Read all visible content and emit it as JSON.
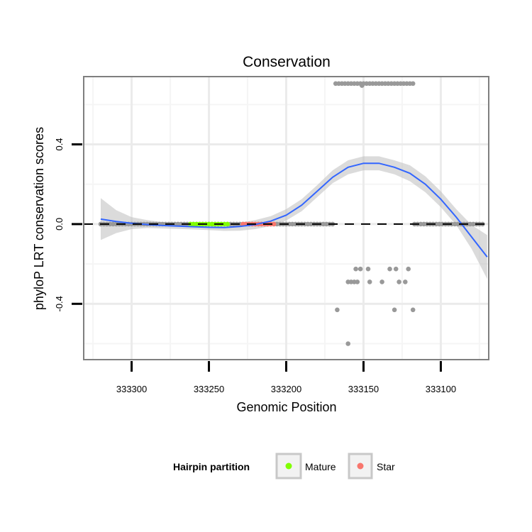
{
  "chart_data": {
    "type": "scatter",
    "title": "Conservation",
    "xlabel": "Genomic Position",
    "ylabel": "phyloP LRT conservation scores",
    "x_reversed": true,
    "xlim": [
      333069,
      333331
    ],
    "ylim": [
      -0.68,
      0.74
    ],
    "x_ticks": [
      333300,
      333250,
      333200,
      333150,
      333100
    ],
    "x_tick_labels": [
      "333300",
      "333250",
      "333200",
      "333150",
      "333100"
    ],
    "y_ticks": [
      -0.4,
      0.0,
      0.4
    ],
    "y_tick_labels": [
      "-0.4",
      "0.0",
      "0.4"
    ],
    "x_minor_grid": [
      333325,
      333275,
      333225,
      333175,
      333125,
      333075
    ],
    "y_minor_grid": [
      -0.6,
      -0.2,
      0.2,
      0.6
    ],
    "reference_line": {
      "y": 0,
      "style": "dashed",
      "color": "#000000"
    },
    "series": [
      {
        "name": "Hairpin",
        "color": "#999999",
        "baseline_runs": [
          {
            "from": 333320,
            "to": 333170,
            "step": 2,
            "y": 0.0
          },
          {
            "from": 333117,
            "to": 333073,
            "step": 2,
            "y": 0.0
          }
        ],
        "high_run": {
          "from": 333168,
          "to": 333118,
          "step": 2,
          "y": 0.705
        },
        "points": [
          {
            "x": 333151,
            "y": 0.695
          },
          {
            "x": 333167,
            "y": -0.43
          },
          {
            "x": 333118,
            "y": -0.43
          },
          {
            "x": 333130,
            "y": -0.43
          },
          {
            "x": 333155,
            "y": -0.225
          },
          {
            "x": 333152,
            "y": -0.225
          },
          {
            "x": 333147,
            "y": -0.225
          },
          {
            "x": 333133,
            "y": -0.225
          },
          {
            "x": 333129,
            "y": -0.225
          },
          {
            "x": 333121,
            "y": -0.225
          },
          {
            "x": 333160,
            "y": -0.29
          },
          {
            "x": 333158,
            "y": -0.29
          },
          {
            "x": 333156,
            "y": -0.29
          },
          {
            "x": 333154,
            "y": -0.29
          },
          {
            "x": 333146,
            "y": -0.29
          },
          {
            "x": 333138,
            "y": -0.29
          },
          {
            "x": 333127,
            "y": -0.29
          },
          {
            "x": 333123,
            "y": -0.29
          },
          {
            "x": 333160,
            "y": -0.6
          }
        ]
      },
      {
        "name": "Mature",
        "color": "#80ff00",
        "from": 333262,
        "to": 333238,
        "step": 2,
        "y": 0.0
      },
      {
        "name": "Star",
        "color": "#f8766d",
        "from": 333228,
        "to": 333208,
        "step": 2,
        "y": 0.0
      }
    ],
    "smooth": {
      "color": "#3366ff",
      "band_color": "#bdbdbd",
      "points": [
        {
          "x": 333320,
          "y": 0.025,
          "lo": -0.08,
          "hi": 0.13
        },
        {
          "x": 333310,
          "y": 0.013,
          "lo": -0.045,
          "hi": 0.07
        },
        {
          "x": 333300,
          "y": 0.004,
          "lo": -0.025,
          "hi": 0.035
        },
        {
          "x": 333290,
          "y": -0.002,
          "lo": -0.02,
          "hi": 0.02
        },
        {
          "x": 333280,
          "y": -0.007,
          "lo": -0.022,
          "hi": 0.01
        },
        {
          "x": 333270,
          "y": -0.01,
          "lo": -0.024,
          "hi": 0.006
        },
        {
          "x": 333260,
          "y": -0.013,
          "lo": -0.027,
          "hi": 0.004
        },
        {
          "x": 333250,
          "y": -0.016,
          "lo": -0.03,
          "hi": 0.001
        },
        {
          "x": 333240,
          "y": -0.017,
          "lo": -0.034,
          "hi": 0.002
        },
        {
          "x": 333230,
          "y": -0.012,
          "lo": -0.033,
          "hi": 0.008
        },
        {
          "x": 333220,
          "y": -0.002,
          "lo": -0.025,
          "hi": 0.02
        },
        {
          "x": 333210,
          "y": 0.015,
          "lo": -0.01,
          "hi": 0.04
        },
        {
          "x": 333200,
          "y": 0.045,
          "lo": 0.018,
          "hi": 0.075
        },
        {
          "x": 333190,
          "y": 0.095,
          "lo": 0.065,
          "hi": 0.125
        },
        {
          "x": 333180,
          "y": 0.165,
          "lo": 0.135,
          "hi": 0.195
        },
        {
          "x": 333170,
          "y": 0.235,
          "lo": 0.205,
          "hi": 0.27
        },
        {
          "x": 333160,
          "y": 0.285,
          "lo": 0.25,
          "hi": 0.32
        },
        {
          "x": 333150,
          "y": 0.305,
          "lo": 0.27,
          "hi": 0.34
        },
        {
          "x": 333140,
          "y": 0.305,
          "lo": 0.27,
          "hi": 0.34
        },
        {
          "x": 333130,
          "y": 0.285,
          "lo": 0.25,
          "hi": 0.32
        },
        {
          "x": 333120,
          "y": 0.255,
          "lo": 0.215,
          "hi": 0.295
        },
        {
          "x": 333110,
          "y": 0.2,
          "lo": 0.16,
          "hi": 0.24
        },
        {
          "x": 333100,
          "y": 0.125,
          "lo": 0.085,
          "hi": 0.165
        },
        {
          "x": 333090,
          "y": 0.035,
          "lo": -0.005,
          "hi": 0.075
        },
        {
          "x": 333080,
          "y": -0.065,
          "lo": -0.125,
          "hi": -0.005
        },
        {
          "x": 333070,
          "y": -0.165,
          "lo": -0.275,
          "hi": -0.055
        }
      ]
    },
    "legend": {
      "title": "Hairpin partition",
      "placement": "bottom",
      "items": [
        {
          "label": "Mature",
          "color": "#80ff00"
        },
        {
          "label": "Star",
          "color": "#f8766d"
        }
      ]
    }
  }
}
